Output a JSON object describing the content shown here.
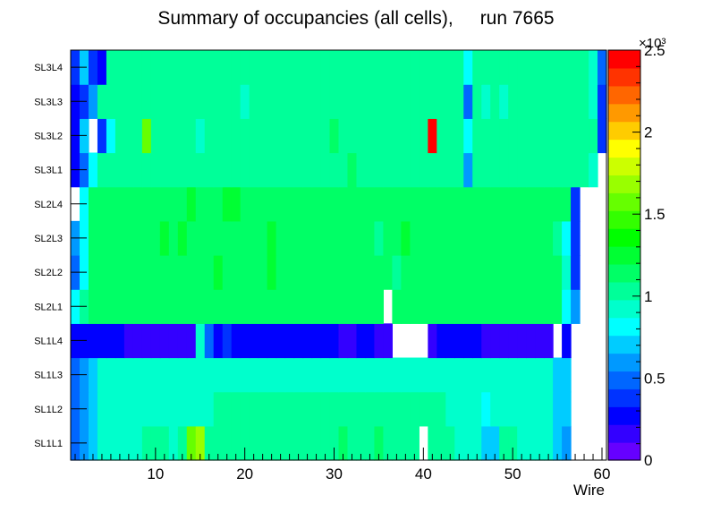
{
  "chart_data": {
    "type": "heatmap",
    "title_left": "Summary of occupancies (all cells),",
    "title_right": "run 7665",
    "xlabel": "Wire",
    "xlim": [
      0.5,
      60.5
    ],
    "x_ticks": [
      "10",
      "20",
      "30",
      "40",
      "50",
      "60"
    ],
    "layers": [
      "SL1L1",
      "SL1L2",
      "SL1L3",
      "SL1L4",
      "SL2L1",
      "SL2L2",
      "SL2L3",
      "SL2L4",
      "SL3L1",
      "SL3L2",
      "SL3L3",
      "SL3L4"
    ],
    "zlim": [
      0,
      2500
    ],
    "z_ticks": [
      "0",
      "0.5",
      "1",
      "1.5",
      "2",
      "2.5"
    ],
    "z_exponent": "×10³",
    "values": [
      [
        500,
        600,
        700,
        900,
        900,
        900,
        900,
        950,
        1000,
        1000,
        1000,
        950,
        1000,
        1550,
        1650,
        1000,
        1000,
        1000,
        1000,
        1000,
        1000,
        1000,
        1000,
        1000,
        1000,
        1000,
        1000,
        1000,
        1000,
        1050,
        1100,
        1050,
        1050,
        1050,
        1100,
        1050,
        1000,
        1000,
        1000,
        0,
        1000,
        1000,
        1000,
        950,
        900,
        900,
        700,
        700,
        1000,
        1000,
        900,
        900,
        900,
        900,
        700,
        600,
        0,
        0,
        0,
        0
      ],
      [
        500,
        600,
        700,
        900,
        950,
        950,
        950,
        950,
        950,
        950,
        950,
        950,
        950,
        950,
        950,
        950,
        1000,
        1000,
        1000,
        1000,
        1000,
        1000,
        1000,
        1000,
        1000,
        1000,
        1000,
        1000,
        1000,
        1000,
        1000,
        1000,
        1000,
        1000,
        1000,
        1000,
        1000,
        1000,
        1000,
        1000,
        1000,
        1000,
        950,
        950,
        950,
        950,
        850,
        900,
        900,
        900,
        900,
        900,
        900,
        900,
        700,
        700,
        0,
        0,
        0,
        0
      ],
      [
        500,
        600,
        700,
        900,
        900,
        950,
        950,
        950,
        950,
        950,
        950,
        950,
        950,
        950,
        950,
        950,
        950,
        950,
        950,
        950,
        950,
        950,
        950,
        950,
        950,
        950,
        950,
        950,
        950,
        950,
        950,
        950,
        950,
        950,
        950,
        950,
        950,
        950,
        950,
        950,
        950,
        950,
        950,
        950,
        950,
        950,
        950,
        950,
        950,
        950,
        950,
        950,
        900,
        900,
        700,
        700,
        0,
        0,
        0,
        0
      ],
      [
        300,
        250,
        250,
        250,
        250,
        250,
        150,
        150,
        150,
        150,
        150,
        150,
        150,
        150,
        950,
        500,
        300,
        350,
        300,
        300,
        250,
        250,
        250,
        250,
        250,
        250,
        300,
        250,
        250,
        250,
        200,
        200,
        300,
        300,
        200,
        200,
        0,
        0,
        0,
        0,
        200,
        250,
        250,
        250,
        250,
        300,
        200,
        200,
        200,
        200,
        200,
        200,
        200,
        200,
        0,
        250,
        0,
        0,
        0,
        0
      ],
      [
        800,
        1050,
        1100,
        1100,
        1100,
        1100,
        1100,
        1150,
        1100,
        1100,
        1100,
        1100,
        1150,
        1100,
        1150,
        1150,
        1100,
        1100,
        1150,
        1150,
        1150,
        1100,
        1150,
        1100,
        1150,
        1150,
        1100,
        1100,
        1100,
        1100,
        1150,
        1100,
        1100,
        1100,
        1100,
        0,
        1100,
        1100,
        1100,
        1100,
        1100,
        1100,
        1100,
        1100,
        1150,
        1100,
        1100,
        1100,
        1100,
        1100,
        1100,
        1100,
        1100,
        1100,
        1100,
        850,
        600,
        0,
        0,
        0
      ],
      [
        450,
        800,
        1100,
        1150,
        1150,
        1150,
        1150,
        1150,
        1150,
        1100,
        1150,
        1150,
        1150,
        1100,
        1150,
        1100,
        1200,
        1150,
        1150,
        1150,
        1150,
        1150,
        1200,
        1150,
        1150,
        1150,
        1150,
        1150,
        1150,
        1150,
        1150,
        1100,
        1100,
        1150,
        1150,
        1150,
        1050,
        1150,
        1150,
        1150,
        1150,
        1150,
        1100,
        1150,
        1150,
        1100,
        1100,
        1100,
        1100,
        1150,
        1100,
        1100,
        1150,
        1100,
        1100,
        950,
        400,
        0,
        0,
        0
      ],
      [
        550,
        800,
        1100,
        1150,
        1150,
        1150,
        1150,
        1150,
        1150,
        1150,
        1200,
        1150,
        1200,
        1150,
        1150,
        1150,
        1150,
        1150,
        1150,
        1150,
        1150,
        1150,
        1200,
        1150,
        1150,
        1150,
        1150,
        1150,
        1150,
        1150,
        1150,
        1150,
        1150,
        1150,
        1050,
        1150,
        1150,
        1200,
        1150,
        1150,
        1150,
        1150,
        1150,
        1150,
        1150,
        1150,
        1150,
        1150,
        1150,
        1150,
        1150,
        1150,
        1150,
        1150,
        1050,
        850,
        400,
        0,
        0,
        0
      ],
      [
        0,
        800,
        1100,
        1150,
        1150,
        1150,
        1150,
        1150,
        1150,
        1150,
        1150,
        1150,
        1150,
        1200,
        1150,
        1150,
        1150,
        1200,
        1200,
        1150,
        1150,
        1150,
        1150,
        1150,
        1150,
        1150,
        1150,
        1150,
        1150,
        1150,
        1150,
        1150,
        1150,
        1150,
        1150,
        1150,
        1150,
        1150,
        1150,
        1150,
        1150,
        1150,
        1150,
        1150,
        1150,
        1150,
        1150,
        1150,
        1150,
        1150,
        1150,
        1150,
        1100,
        1100,
        1100,
        1100,
        400,
        0,
        0,
        0
      ],
      [
        300,
        450,
        850,
        1050,
        1050,
        1050,
        1050,
        1000,
        1050,
        1050,
        1050,
        1050,
        1050,
        1050,
        1050,
        1050,
        1050,
        1050,
        1050,
        1050,
        1050,
        1050,
        1050,
        1050,
        1050,
        1050,
        1050,
        1050,
        1050,
        1050,
        1050,
        1100,
        1050,
        1050,
        1050,
        1050,
        1050,
        1050,
        1050,
        1050,
        1050,
        1050,
        1050,
        1050,
        550,
        1050,
        1050,
        1050,
        1050,
        1050,
        1050,
        1050,
        1050,
        1050,
        1050,
        1050,
        1050,
        1050,
        900,
        0
      ],
      [
        300,
        700,
        0,
        400,
        800,
        1050,
        1050,
        1050,
        1600,
        1050,
        1050,
        1050,
        1050,
        1050,
        950,
        1050,
        1050,
        1050,
        1050,
        1050,
        1050,
        1050,
        1050,
        1050,
        1050,
        1050,
        1050,
        1050,
        1050,
        1150,
        1050,
        1050,
        1050,
        1050,
        1050,
        1050,
        1050,
        1050,
        1050,
        1050,
        2400,
        1050,
        1050,
        1050,
        800,
        1050,
        1050,
        1050,
        1050,
        1050,
        1050,
        1050,
        1050,
        1050,
        1050,
        1050,
        1050,
        1050,
        1050,
        400
      ],
      [
        300,
        400,
        650,
        1050,
        1050,
        1050,
        1050,
        1050,
        1050,
        1050,
        1050,
        1050,
        1050,
        1050,
        1050,
        1050,
        1050,
        1050,
        1050,
        950,
        1050,
        1050,
        1050,
        1050,
        1050,
        1050,
        1050,
        1050,
        1050,
        1050,
        1050,
        1050,
        1050,
        1050,
        1050,
        1050,
        1050,
        1050,
        1050,
        1050,
        1050,
        1050,
        1050,
        1050,
        500,
        1050,
        950,
        1050,
        950,
        1050,
        1050,
        1050,
        1050,
        1050,
        1050,
        1050,
        1050,
        1050,
        950,
        400
      ],
      [
        400,
        750,
        350,
        300,
        1000,
        1000,
        1000,
        1000,
        1000,
        1050,
        1000,
        1050,
        1000,
        1050,
        1000,
        1000,
        1000,
        1000,
        1050,
        1000,
        1000,
        1050,
        1000,
        1000,
        1000,
        1000,
        1000,
        1000,
        1000,
        1000,
        1000,
        1000,
        1000,
        1050,
        1000,
        1000,
        1000,
        1000,
        1000,
        1000,
        1000,
        1000,
        1000,
        1000,
        850,
        1000,
        1000,
        1000,
        1000,
        1000,
        1000,
        1000,
        1000,
        1000,
        1000,
        1000,
        1000,
        1000,
        950,
        450
      ]
    ]
  }
}
